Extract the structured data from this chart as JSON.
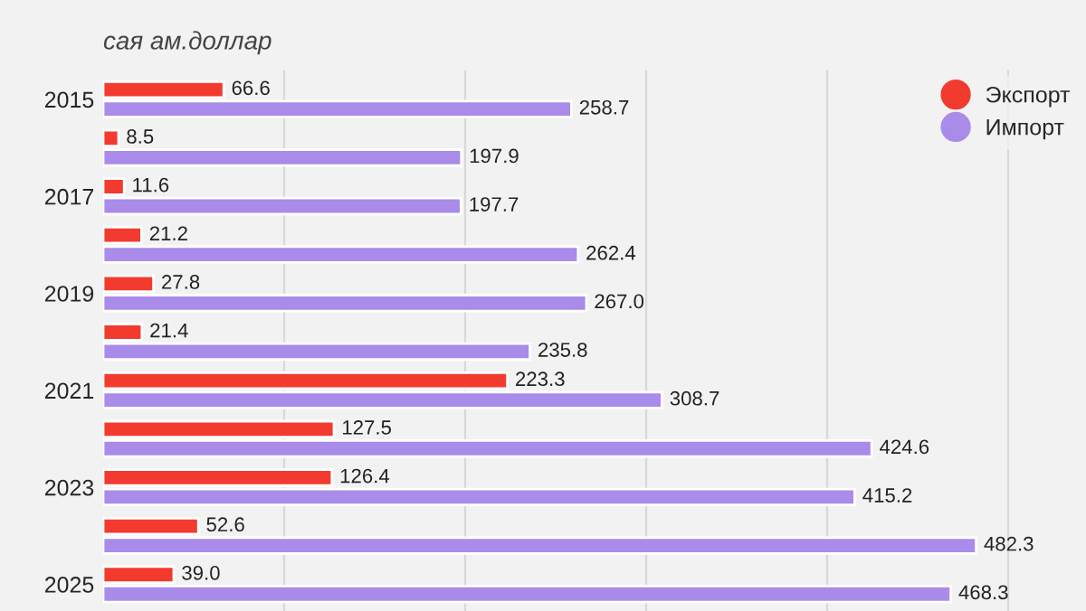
{
  "chart_data": {
    "type": "bar",
    "orientation": "horizontal",
    "subtitle": "сая ам.доллар",
    "categories": [
      "2015",
      null,
      "2017",
      null,
      "2019",
      null,
      "2021",
      null,
      "2023",
      null,
      "2025"
    ],
    "series": [
      {
        "name": "Экспорт",
        "color": "#f23a2f",
        "values": [
          66.6,
          8.5,
          11.6,
          21.2,
          27.8,
          21.4,
          223.3,
          127.5,
          126.4,
          52.6,
          39.0
        ],
        "value_labels": [
          "66.6",
          "8.5",
          "11.6",
          "21.2",
          "27.8",
          "21.4",
          "223.3",
          "127.5",
          "126.4",
          "52.6",
          "39.0"
        ]
      },
      {
        "name": "Импорт",
        "color": "#a98bea",
        "values": [
          258.7,
          197.9,
          197.7,
          262.4,
          267.0,
          235.8,
          308.7,
          424.6,
          415.2,
          482.3,
          468.3
        ],
        "value_labels": [
          "258.7",
          "197.9",
          "197.7",
          "262.4",
          "267.0",
          "235.8",
          "308.7",
          "424.6",
          "415.2",
          "482.3",
          "468.3"
        ]
      }
    ],
    "xlim": [
      0,
      543
    ],
    "xticks": [
      {
        "value": 100,
        "label": null
      },
      {
        "value": 200,
        "label": null
      },
      {
        "value": 300,
        "label": null
      },
      {
        "value": 400,
        "label": null
      },
      {
        "value": 500,
        "label": null
      }
    ],
    "grid": "x",
    "legend": "top right"
  }
}
